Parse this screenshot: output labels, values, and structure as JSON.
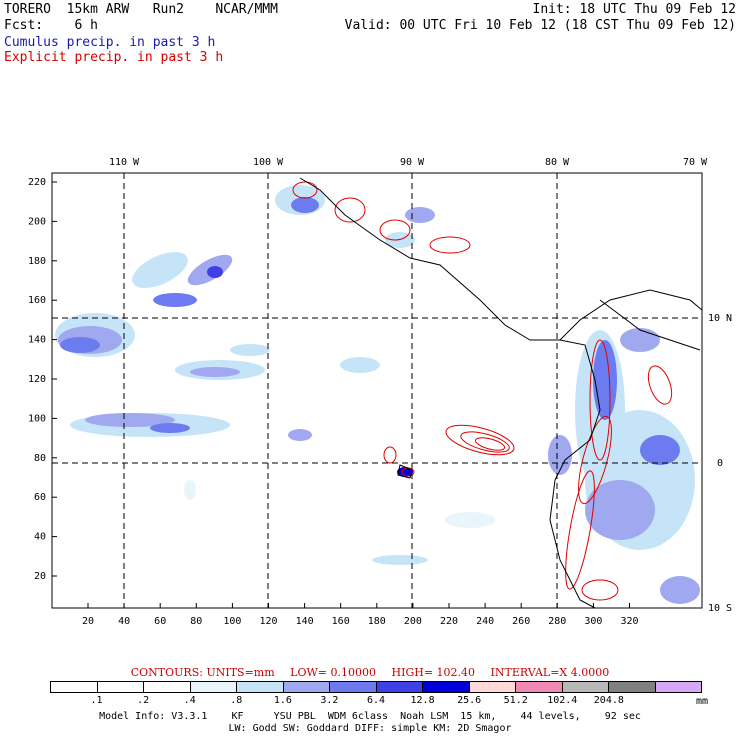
{
  "header": {
    "model": "TORERO  15km ARW   Run2    NCAR/MMM",
    "init": "Init: 18 UTC Thu 09 Feb 12",
    "fcst": "Fcst:    6 h",
    "valid": "Valid: 00 UTC Fri 10 Feb 12 (18 CST Thu 09 Feb 12)",
    "field1": "Cumulus precip. in past 3 h",
    "field2": "Explicit precip. in past 3 h",
    "field1_color": "#1a1aa8",
    "field2_color": "#d40000"
  },
  "axes": {
    "top_lon": [
      "110 W",
      "100 W",
      "90 W",
      "80 W",
      "70 W"
    ],
    "right_lat": [
      "10 N",
      "0",
      "10 S"
    ],
    "left_y": [
      "220",
      "200",
      "180",
      "160",
      "140",
      "120",
      "100",
      "80",
      "60",
      "40",
      "20"
    ],
    "bottom_x": [
      "20",
      "40",
      "60",
      "80",
      "100",
      "120",
      "140",
      "160",
      "180",
      "200",
      "220",
      "240",
      "260",
      "280",
      "300",
      "320"
    ]
  },
  "contour_info": {
    "units": "CONTOURS:  UNITS=mm",
    "low": "LOW= 0.10000",
    "high": "HIGH=  102.40",
    "interval": "INTERVAL=X  4.0000"
  },
  "colorbar": {
    "colors": [
      "#ffffff",
      "#ffffff",
      "#ffffff",
      "#e8f5fb",
      "#c6e4f7",
      "#a0a8f0",
      "#6c7cf0",
      "#4040e8",
      "#0000d8",
      "#ffd8d8",
      "#f08ab4",
      "#b8b8b8",
      "#808080",
      "#d8a8f8"
    ],
    "labels": [
      ".1",
      ".2",
      ".4",
      ".8",
      "1.6",
      "3.2",
      "6.4",
      "12.8",
      "25.6",
      "51.2",
      "102.4",
      "204.8"
    ],
    "unit": "mm"
  },
  "footer": {
    "line1": "Model Info: V3.3.1    KF     YSU PBL  WDM 6class  Noah LSM  15 km,    44 levels,    92 sec",
    "line2": "LW: Godd SW: Goddard DIFF: simple KM: 2D Smagor"
  }
}
